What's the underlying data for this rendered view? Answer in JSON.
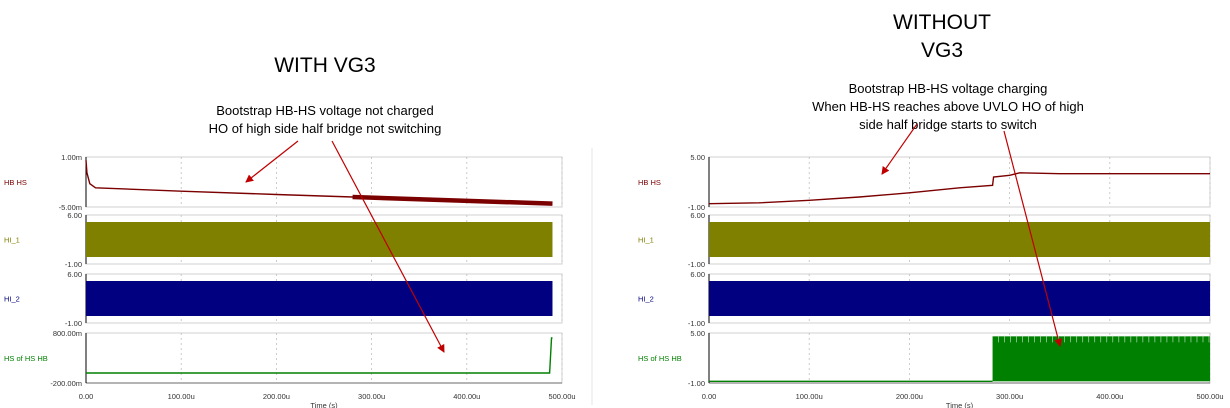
{
  "left": {
    "heading": "WITH VG3",
    "note_lines": [
      "Bootstrap HB-HS voltage not charged",
      "HO of high side half bridge not switching"
    ]
  },
  "right": {
    "heading_lines": [
      "WITHOUT",
      "VG3"
    ],
    "note_lines": [
      "Bootstrap HB-HS voltage charging",
      "When HB-HS reaches above UVLO HO of high",
      "side half bridge starts to switch"
    ]
  },
  "colors": {
    "hb_hs": "#7b0000",
    "hi_1": "#808000",
    "hi_2": "#000080",
    "hs": "#008000",
    "arrow": "#c00000",
    "grid": "#bfbfbf"
  },
  "chart_data": [
    {
      "type": "line",
      "xlabel": "Time (s)",
      "x_ticks": [
        "0.00",
        "100.00u",
        "200.00u",
        "300.00u",
        "400.00u",
        "500.00u"
      ],
      "xlim": [
        0,
        500
      ],
      "panels": [
        {
          "name": "HB HS",
          "ylim": [
            -5,
            1
          ],
          "y_ticks": [
            "1.00m",
            "-5.00m"
          ],
          "x": [
            0,
            1,
            4,
            10,
            100,
            200,
            280,
            350,
            400,
            450,
            490
          ],
          "values": [
            0.6,
            -0.9,
            -2.2,
            -2.7,
            -3.1,
            -3.5,
            -3.8,
            -4.0,
            -4.2,
            -4.4,
            -4.6
          ]
        },
        {
          "name": "HI_1",
          "ylim": [
            -1,
            6
          ],
          "y_ticks": [
            "6.00",
            "-1.00"
          ],
          "switching_from": 0,
          "switching_to": 490,
          "low": 0,
          "high": 5
        },
        {
          "name": "HI_2",
          "ylim": [
            -1,
            6
          ],
          "y_ticks": [
            "6.00",
            "-1.00"
          ],
          "switching_from": 0,
          "switching_to": 490,
          "low": 0,
          "high": 5
        },
        {
          "name": "HS of HS HB",
          "ylim": [
            -200,
            800
          ],
          "y_ticks": [
            "800.00m",
            "-200.00m"
          ],
          "x": [
            0,
            487,
            489,
            490
          ],
          "values": [
            0,
            0,
            700,
            700
          ]
        }
      ]
    },
    {
      "type": "line",
      "xlabel": "Time (s)",
      "x_ticks": [
        "0.00",
        "100.00u",
        "200.00u",
        "300.00u",
        "400.00u",
        "500.00u"
      ],
      "xlim": [
        0,
        500
      ],
      "panels": [
        {
          "name": "HB HS",
          "ylim": [
            -1,
            5
          ],
          "y_ticks": [
            "5.00",
            "-1.00"
          ],
          "x": [
            0,
            50,
            100,
            150,
            200,
            250,
            283,
            284,
            300,
            310,
            350,
            500
          ],
          "values": [
            -0.6,
            -0.5,
            -0.2,
            0.2,
            0.7,
            1.3,
            1.6,
            2.6,
            2.8,
            3.1,
            3.0,
            3.0
          ]
        },
        {
          "name": "HI_1",
          "ylim": [
            -1,
            6
          ],
          "y_ticks": [
            "6.00",
            "-1.00"
          ],
          "switching_from": 0,
          "switching_to": 500,
          "low": 0,
          "high": 5
        },
        {
          "name": "HI_2",
          "ylim": [
            -1,
            6
          ],
          "y_ticks": [
            "6.00",
            "-1.00"
          ],
          "switching_from": 0,
          "switching_to": 500,
          "low": 0,
          "high": 5
        },
        {
          "name": "HS of HS HB",
          "ylim": [
            -1,
            5
          ],
          "y_ticks": [
            "5.00",
            "-1.00"
          ],
          "x": [
            0,
            283
          ],
          "values": [
            -0.8,
            -0.8
          ],
          "switching_from": 283,
          "switching_to": 500,
          "low": -0.8,
          "high": 4.6
        }
      ]
    }
  ]
}
